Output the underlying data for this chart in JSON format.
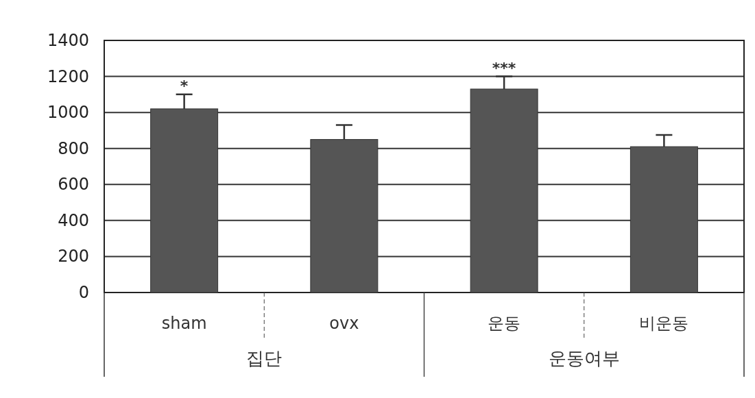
{
  "chart_data": {
    "type": "bar",
    "categories": [
      "sham",
      "ovx",
      "운동",
      "비운동"
    ],
    "values": [
      1020,
      850,
      1130,
      810
    ],
    "errors": [
      80,
      80,
      70,
      65
    ],
    "color": "#555555",
    "ylim": [
      0,
      1400
    ],
    "yticks": [
      0,
      200,
      400,
      600,
      800,
      1000,
      1200,
      1400
    ],
    "grid": "y",
    "annotations": [
      "*",
      "***",
      "집단",
      "운동여부"
    ]
  }
}
